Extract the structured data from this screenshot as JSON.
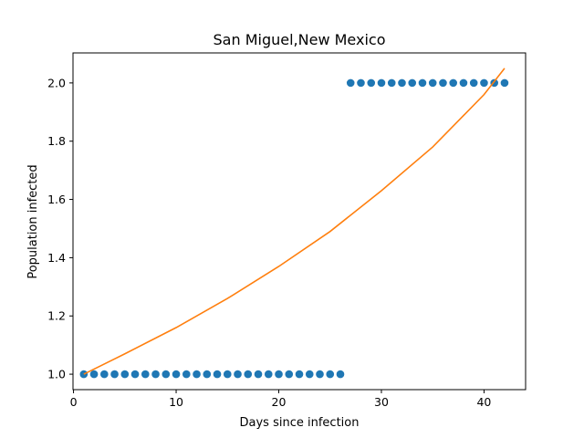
{
  "chart_data": {
    "type": "scatter",
    "title": "San Miguel,New Mexico",
    "xlabel": "Days since infection",
    "ylabel": "Population infected",
    "xlim": [
      -0.05,
      44.05
    ],
    "ylim": [
      0.947,
      2.103
    ],
    "x_ticks": [
      0,
      10,
      20,
      30,
      40
    ],
    "y_ticks": [
      1.0,
      1.2,
      1.4,
      1.6,
      1.8,
      2.0
    ],
    "x_tick_labels": [
      "0",
      "10",
      "20",
      "30",
      "40"
    ],
    "y_tick_labels": [
      "1.0",
      "1.2",
      "1.4",
      "1.6",
      "1.8",
      "2.0"
    ],
    "grid": false,
    "series": [
      {
        "type": "scatter",
        "color": "#1f77b4",
        "x": [
          1,
          2,
          3,
          4,
          5,
          6,
          7,
          8,
          9,
          10,
          11,
          12,
          13,
          14,
          15,
          16,
          17,
          18,
          19,
          20,
          21,
          22,
          23,
          24,
          25,
          26,
          27,
          28,
          29,
          30,
          31,
          32,
          33,
          34,
          35,
          36,
          37,
          38,
          39,
          40,
          41,
          42
        ],
        "y": [
          1,
          1,
          1,
          1,
          1,
          1,
          1,
          1,
          1,
          1,
          1,
          1,
          1,
          1,
          1,
          1,
          1,
          1,
          1,
          1,
          1,
          1,
          1,
          1,
          1,
          1,
          2,
          2,
          2,
          2,
          2,
          2,
          2,
          2,
          2,
          2,
          2,
          2,
          2,
          2,
          2,
          2
        ]
      },
      {
        "type": "line",
        "color": "#ff7f0e",
        "x": [
          1,
          5,
          10,
          15,
          20,
          25,
          30,
          35,
          40,
          42
        ],
        "y": [
          1.0,
          1.07,
          1.16,
          1.26,
          1.37,
          1.49,
          1.63,
          1.78,
          1.96,
          2.05
        ]
      }
    ]
  }
}
